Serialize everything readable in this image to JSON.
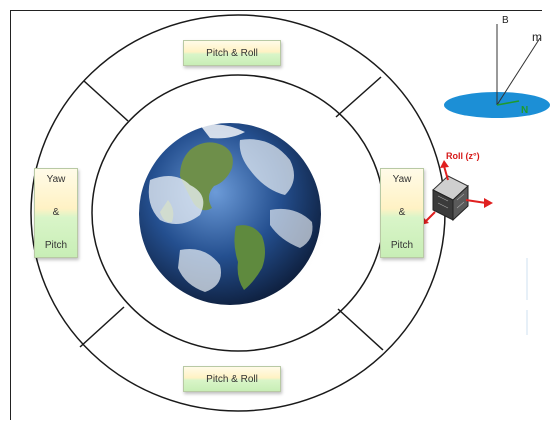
{
  "boxes": {
    "top": "Pitch & Roll",
    "bottom": "Pitch & Roll",
    "left": {
      "line1": "Yaw",
      "line2": "&",
      "line3": "Pitch"
    },
    "right": {
      "line1": "Yaw",
      "line2": "&",
      "line3": "Pitch"
    }
  },
  "satellite": {
    "roll_label": "Roll (z°)"
  },
  "vectors": {
    "b_label": "B",
    "m_label": "m",
    "n_label": "N"
  },
  "colors": {
    "ring": "#1a1a1a",
    "earth_ocean": "#1b4f93",
    "disk": "#1c8fd6",
    "arrow": "#e02020",
    "north": "#1f9a2d"
  },
  "icons": [
    "earth-globe-icon",
    "cubesat-icon"
  ]
}
